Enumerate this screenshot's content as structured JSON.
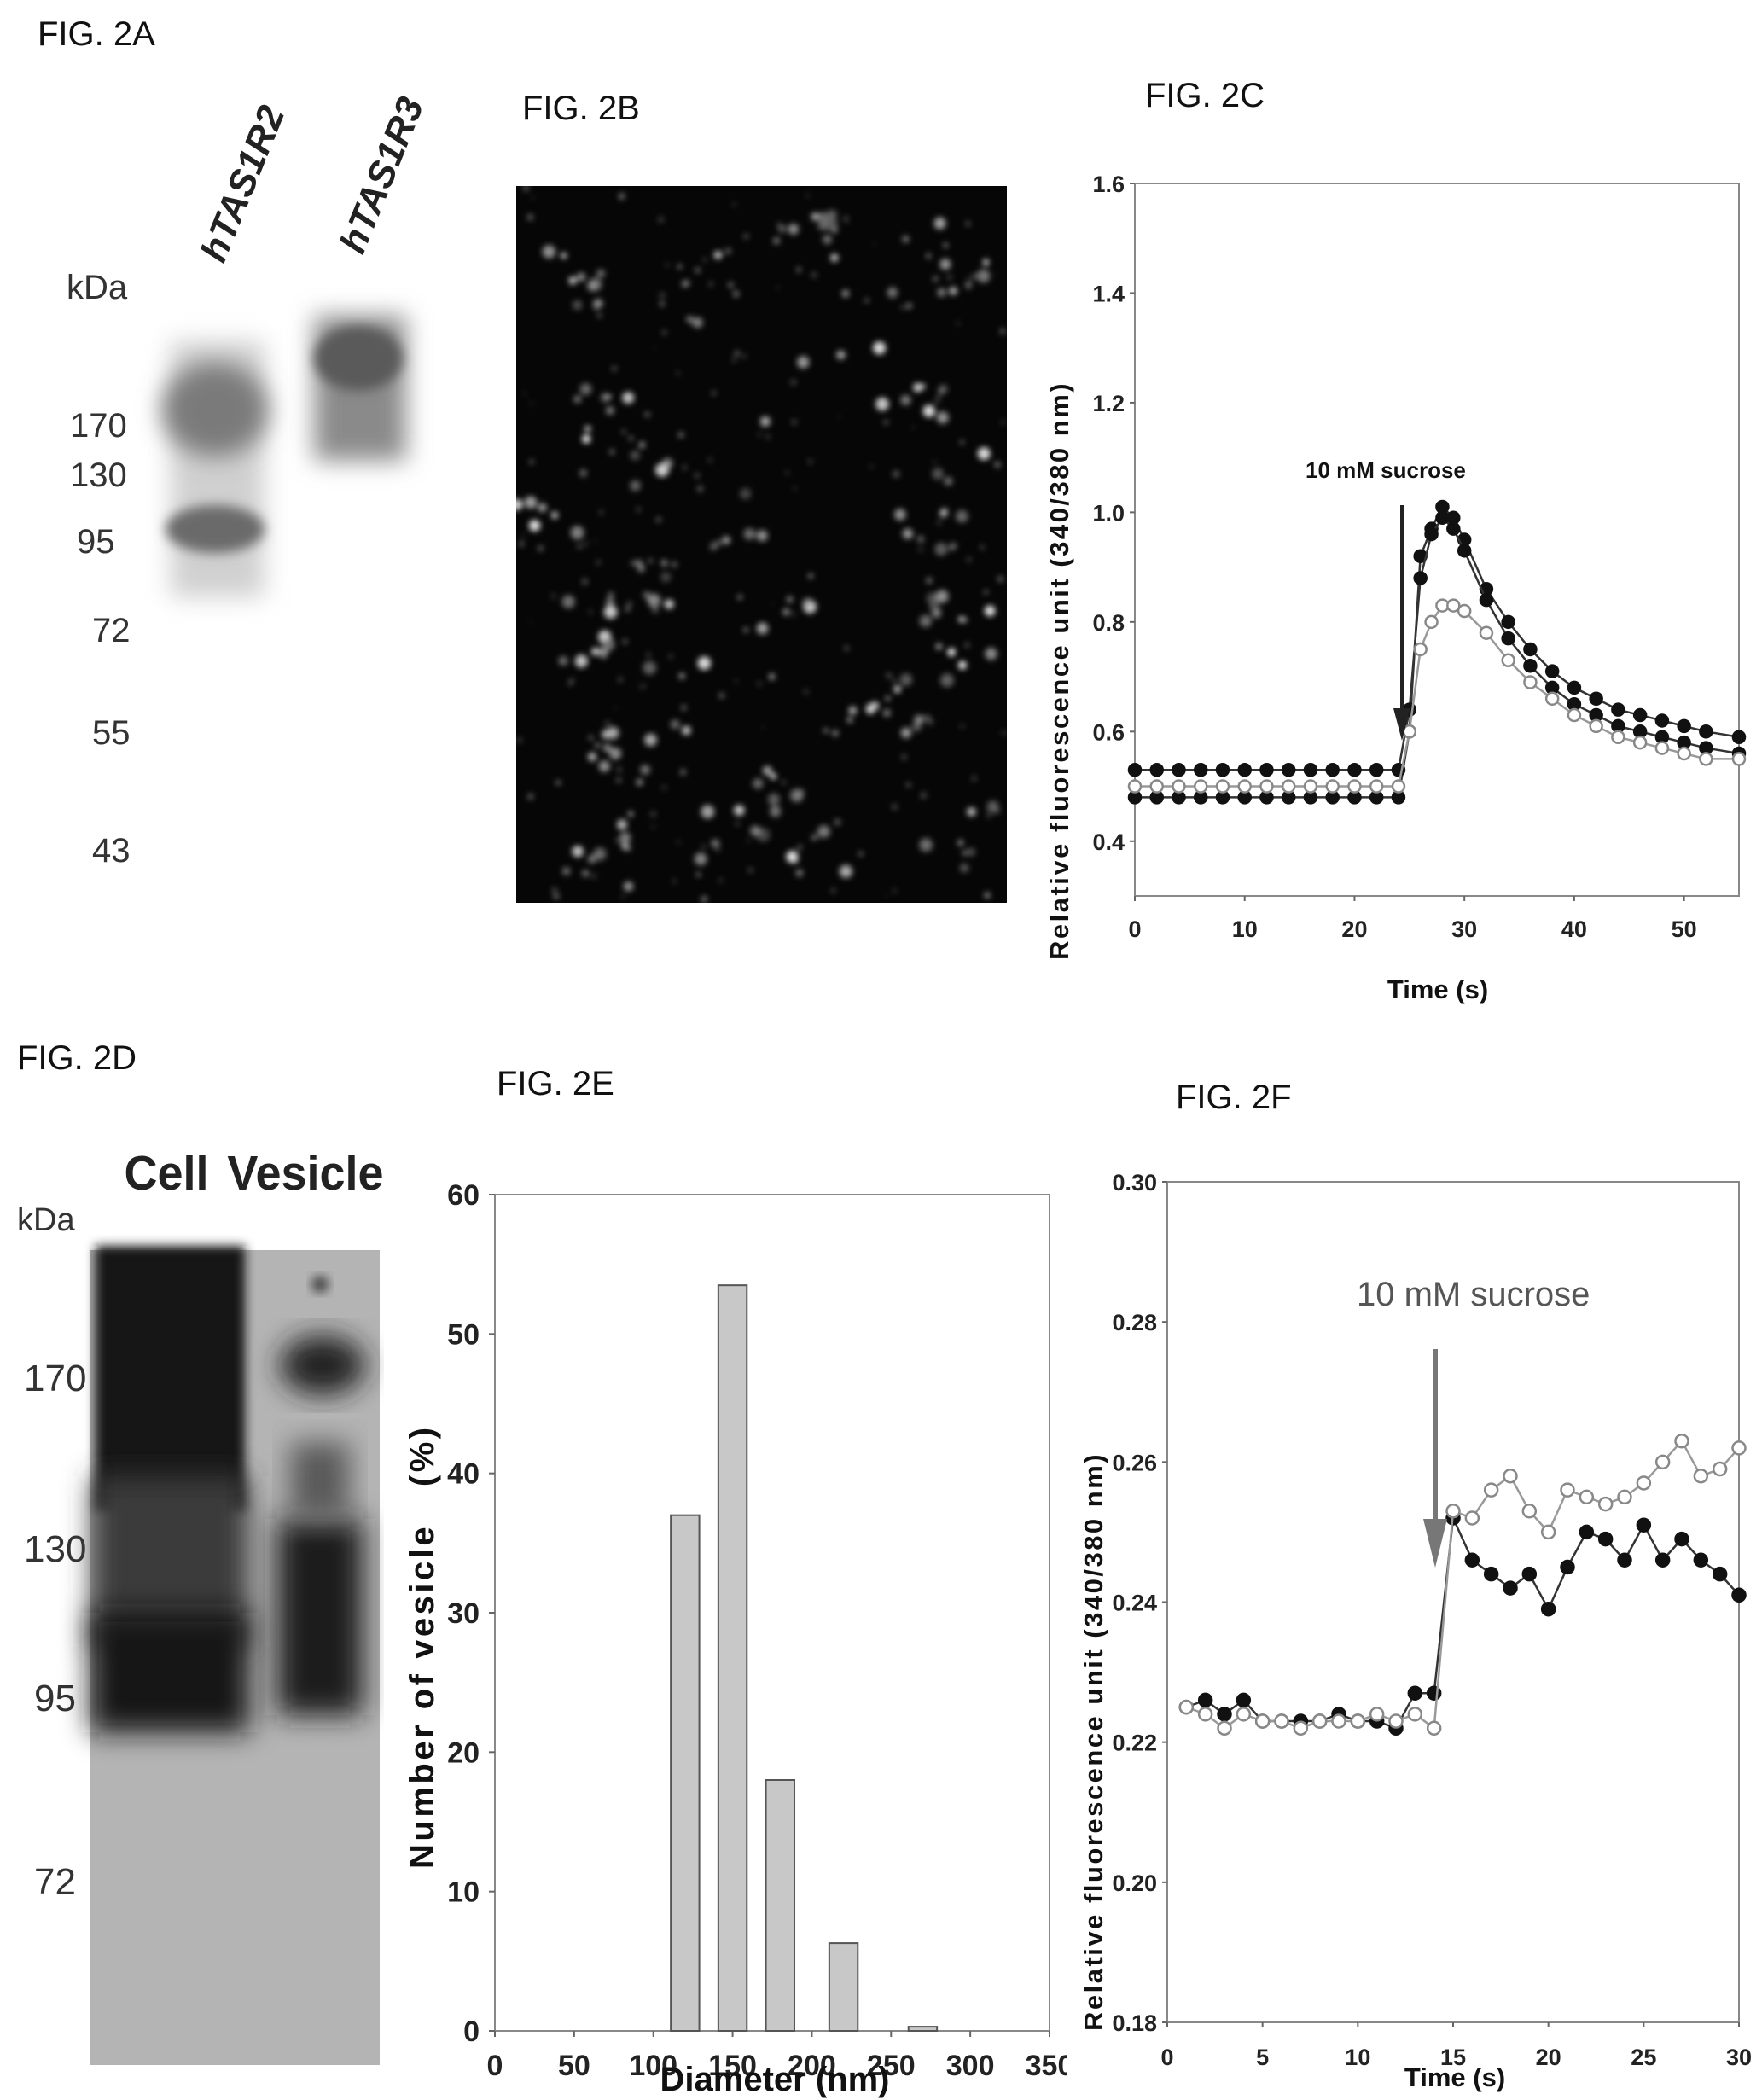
{
  "figures": {
    "a": {
      "label": "FIG. 2A",
      "lane_labels": [
        "hTAS1R2",
        "hTAS1R3"
      ],
      "unit": "kDa",
      "markers": [
        "170",
        "130",
        "95",
        "72",
        "55",
        "43"
      ]
    },
    "b": {
      "label": "FIG. 2B"
    },
    "c": {
      "label": "FIG. 2C",
      "annotation": "10 mM sucrose"
    },
    "d": {
      "label": "FIG. 2D",
      "lane_labels": [
        "Cell",
        "Vesicle"
      ],
      "unit": "kDa",
      "markers": [
        "170",
        "130",
        "95",
        "72"
      ]
    },
    "e": {
      "label": "FIG. 2E"
    },
    "f": {
      "label": "FIG. 2F",
      "annotation": "10 mM sucrose"
    }
  },
  "chart_data": [
    {
      "id": "fig2c",
      "type": "line",
      "xlabel": "Time (s)",
      "ylabel": "Relative fluorescence unit (340/380 nm)",
      "xlim": [
        0,
        55
      ],
      "ylim": [
        0.3,
        1.6
      ],
      "xticks": [
        0,
        10,
        20,
        30,
        40,
        50
      ],
      "yticks": [
        "0.4",
        "0.6",
        "0.8",
        "1.0",
        "1.2",
        "1.4",
        "1.6"
      ],
      "series": [
        {
          "marker": "filled",
          "points": [
            [
              0,
              0.48
            ],
            [
              2,
              0.48
            ],
            [
              4,
              0.48
            ],
            [
              6,
              0.48
            ],
            [
              8,
              0.48
            ],
            [
              10,
              0.48
            ],
            [
              12,
              0.48
            ],
            [
              14,
              0.48
            ],
            [
              16,
              0.48
            ],
            [
              18,
              0.48
            ],
            [
              20,
              0.48
            ],
            [
              22,
              0.48
            ],
            [
              24,
              0.48
            ],
            [
              25,
              0.6
            ],
            [
              26,
              0.92
            ],
            [
              27,
              0.97
            ],
            [
              28,
              1.01
            ],
            [
              29,
              0.99
            ],
            [
              30,
              0.95
            ],
            [
              32,
              0.86
            ],
            [
              34,
              0.8
            ],
            [
              36,
              0.75
            ],
            [
              38,
              0.71
            ],
            [
              40,
              0.68
            ],
            [
              42,
              0.66
            ],
            [
              44,
              0.64
            ],
            [
              46,
              0.63
            ],
            [
              48,
              0.62
            ],
            [
              50,
              0.61
            ],
            [
              52,
              0.6
            ],
            [
              55,
              0.59
            ]
          ]
        },
        {
          "marker": "filled",
          "points": [
            [
              0,
              0.53
            ],
            [
              2,
              0.53
            ],
            [
              4,
              0.53
            ],
            [
              6,
              0.53
            ],
            [
              8,
              0.53
            ],
            [
              10,
              0.53
            ],
            [
              12,
              0.53
            ],
            [
              14,
              0.53
            ],
            [
              16,
              0.53
            ],
            [
              18,
              0.53
            ],
            [
              20,
              0.53
            ],
            [
              22,
              0.53
            ],
            [
              24,
              0.53
            ],
            [
              25,
              0.64
            ],
            [
              26,
              0.88
            ],
            [
              27,
              0.96
            ],
            [
              28,
              0.99
            ],
            [
              29,
              0.97
            ],
            [
              30,
              0.93
            ],
            [
              32,
              0.84
            ],
            [
              34,
              0.77
            ],
            [
              36,
              0.72
            ],
            [
              38,
              0.68
            ],
            [
              40,
              0.65
            ],
            [
              42,
              0.63
            ],
            [
              44,
              0.61
            ],
            [
              46,
              0.6
            ],
            [
              48,
              0.59
            ],
            [
              50,
              0.58
            ],
            [
              52,
              0.57
            ],
            [
              55,
              0.56
            ]
          ]
        },
        {
          "marker": "open",
          "points": [
            [
              0,
              0.5
            ],
            [
              2,
              0.5
            ],
            [
              4,
              0.5
            ],
            [
              6,
              0.5
            ],
            [
              8,
              0.5
            ],
            [
              10,
              0.5
            ],
            [
              12,
              0.5
            ],
            [
              14,
              0.5
            ],
            [
              16,
              0.5
            ],
            [
              18,
              0.5
            ],
            [
              20,
              0.5
            ],
            [
              22,
              0.5
            ],
            [
              24,
              0.5
            ],
            [
              25,
              0.6
            ],
            [
              26,
              0.75
            ],
            [
              27,
              0.8
            ],
            [
              28,
              0.83
            ],
            [
              29,
              0.83
            ],
            [
              30,
              0.82
            ],
            [
              32,
              0.78
            ],
            [
              34,
              0.73
            ],
            [
              36,
              0.69
            ],
            [
              38,
              0.66
            ],
            [
              40,
              0.63
            ],
            [
              42,
              0.61
            ],
            [
              44,
              0.59
            ],
            [
              46,
              0.58
            ],
            [
              48,
              0.57
            ],
            [
              50,
              0.56
            ],
            [
              52,
              0.55
            ],
            [
              55,
              0.55
            ]
          ]
        }
      ]
    },
    {
      "id": "fig2e",
      "type": "bar",
      "xlabel": "Diameter (nm)",
      "ylabel": "Number of vesicle   (%)",
      "xlim": [
        0,
        350
      ],
      "ylim": [
        0,
        60
      ],
      "xticks": [
        0,
        50,
        100,
        150,
        200,
        250,
        300,
        350
      ],
      "yticks": [
        0,
        10,
        20,
        30,
        40,
        50,
        60
      ],
      "categories": [
        120,
        150,
        180,
        220,
        270
      ],
      "values": [
        37,
        53.5,
        18,
        6.3,
        0.3
      ]
    },
    {
      "id": "fig2f",
      "type": "line",
      "xlabel": "Time (s)",
      "ylabel": "Relative fluorescence unit (340/380 nm)",
      "xlim": [
        0,
        30
      ],
      "ylim": [
        0.18,
        0.3
      ],
      "xticks": [
        0,
        5,
        10,
        15,
        20,
        25,
        30
      ],
      "yticks": [
        "0.18",
        "0.20",
        "0.22",
        "0.24",
        "0.26",
        "0.28",
        "0.30"
      ],
      "series": [
        {
          "marker": "filled",
          "points": [
            [
              1,
              0.225
            ],
            [
              2,
              0.226
            ],
            [
              3,
              0.224
            ],
            [
              4,
              0.226
            ],
            [
              5,
              0.223
            ],
            [
              6,
              0.223
            ],
            [
              7,
              0.223
            ],
            [
              8,
              0.223
            ],
            [
              9,
              0.224
            ],
            [
              10,
              0.223
            ],
            [
              11,
              0.223
            ],
            [
              12,
              0.222
            ],
            [
              13,
              0.227
            ],
            [
              14,
              0.227
            ],
            [
              15,
              0.252
            ],
            [
              16,
              0.246
            ],
            [
              17,
              0.244
            ],
            [
              18,
              0.242
            ],
            [
              19,
              0.244
            ],
            [
              20,
              0.239
            ],
            [
              21,
              0.245
            ],
            [
              22,
              0.25
            ],
            [
              23,
              0.249
            ],
            [
              24,
              0.246
            ],
            [
              25,
              0.251
            ],
            [
              26,
              0.246
            ],
            [
              27,
              0.249
            ],
            [
              28,
              0.246
            ],
            [
              29,
              0.244
            ],
            [
              30,
              0.241
            ]
          ]
        },
        {
          "marker": "open",
          "points": [
            [
              1,
              0.225
            ],
            [
              2,
              0.224
            ],
            [
              3,
              0.222
            ],
            [
              4,
              0.224
            ],
            [
              5,
              0.223
            ],
            [
              6,
              0.223
            ],
            [
              7,
              0.222
            ],
            [
              8,
              0.223
            ],
            [
              9,
              0.223
            ],
            [
              10,
              0.223
            ],
            [
              11,
              0.224
            ],
            [
              12,
              0.223
            ],
            [
              13,
              0.224
            ],
            [
              14,
              0.222
            ],
            [
              15,
              0.253
            ],
            [
              16,
              0.252
            ],
            [
              17,
              0.256
            ],
            [
              18,
              0.258
            ],
            [
              19,
              0.253
            ],
            [
              20,
              0.25
            ],
            [
              21,
              0.256
            ],
            [
              22,
              0.255
            ],
            [
              23,
              0.254
            ],
            [
              24,
              0.255
            ],
            [
              25,
              0.257
            ],
            [
              26,
              0.26
            ],
            [
              27,
              0.263
            ],
            [
              28,
              0.258
            ],
            [
              29,
              0.259
            ],
            [
              30,
              0.262
            ]
          ]
        }
      ]
    }
  ]
}
